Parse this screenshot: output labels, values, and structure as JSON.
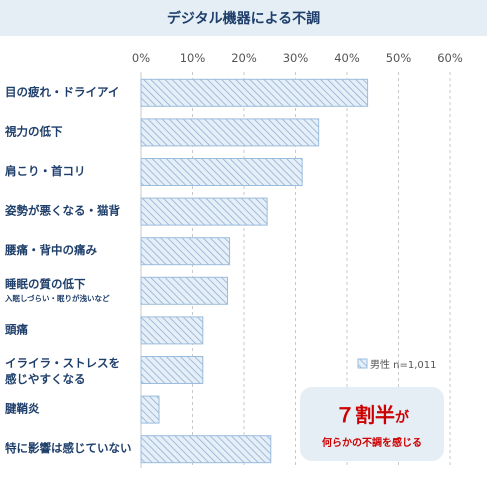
{
  "chart_data": {
    "type": "bar",
    "orientation": "horizontal",
    "title": "デジタル機器による不調",
    "categories": [
      {
        "label": "目の疲れ・ドライアイ",
        "sub": ""
      },
      {
        "label": "視力の低下",
        "sub": ""
      },
      {
        "label": "肩こり・首コリ",
        "sub": ""
      },
      {
        "label": "姿勢が悪くなる・猫背",
        "sub": ""
      },
      {
        "label": "腰痛・背中の痛み",
        "sub": ""
      },
      {
        "label": "睡眠の質の低下",
        "sub": "入眠しづらい・眠りが浅いなど"
      },
      {
        "label": "頭痛",
        "sub": ""
      },
      {
        "label": "イライラ・ストレスを|感じやすくなる",
        "sub": ""
      },
      {
        "label": "腱鞘炎",
        "sub": ""
      },
      {
        "label": "特に影響は感じていない",
        "sub": ""
      }
    ],
    "series": [
      {
        "name": "男性 n=1,011",
        "values": [
          44,
          34.5,
          31.3,
          24.5,
          17.2,
          16.8,
          12,
          12,
          3.5,
          25.2
        ]
      }
    ],
    "xlim": [
      0,
      60
    ],
    "xticks": [
      "0%",
      "10%",
      "20%",
      "30%",
      "40%",
      "50%",
      "60%"
    ],
    "grid": "vertical dashed",
    "legend_position": "right, above callout",
    "colors": {
      "bar_fill": "#e6eff8",
      "bar_stroke": "#9bbcdc",
      "hatch": "#8fb0d3",
      "title_bg": "#e6eef5",
      "label": "#1f3f6b",
      "callout_text": "#cc0000"
    }
  },
  "callout": {
    "number": "７割半",
    "suffix": "が",
    "text": "何らかの不調を感じる"
  }
}
